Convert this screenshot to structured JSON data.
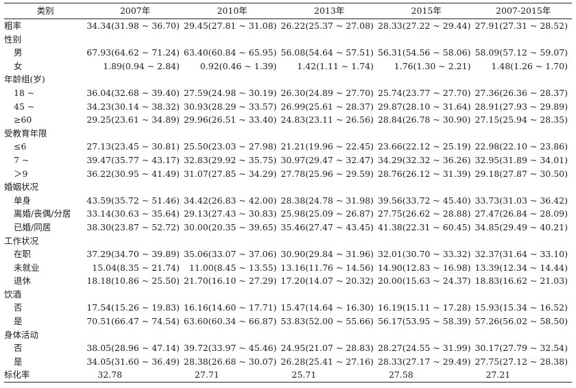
{
  "header": [
    "类别",
    "2007年",
    "2010年",
    "2013年",
    "2015年",
    "2007-2015年"
  ],
  "rows": [
    {
      "label": "粗率",
      "values": [
        "34.34(31.98 ~ 36.70)",
        "29.45(27.81 ~ 31.08)",
        "26.22(25.37 ~ 27.08)",
        "28.33(27.22 ~ 29.44)",
        "27.91(27.31 ~ 28.52)"
      ]
    },
    {
      "label": "性别",
      "values": [
        "",
        "",
        "",
        "",
        ""
      ]
    },
    {
      "label": "男",
      "sub": true,
      "values": [
        "67.93(64.62 ~ 71.24)",
        "63.40(60.84 ~ 65.95)",
        "56.08(54.64 ~ 57.51)",
        "56.31(54.56 ~ 58.06)",
        "58.09(57.12 ~ 59.07)"
      ]
    },
    {
      "label": "女",
      "sub": true,
      "values": [
        "1.89(0.94 ~ 2.84)",
        "0.92(0.46 ~ 1.39)",
        "1.42(1.11 ~ 1.74)",
        "1.76(1.30 ~ 2.21)",
        "1.48(1.26 ~ 1.70)"
      ]
    },
    {
      "label": "年龄组(岁)",
      "values": [
        "",
        "",
        "",
        "",
        ""
      ]
    },
    {
      "label": "18 ~",
      "sub": true,
      "values": [
        "36.04(32.68 ~ 39.40)",
        "27.59(24.98 ~ 30.19)",
        "26.30(24.89 ~ 27.70)",
        "25.74(23.77 ~ 27.70)",
        "27.36(26.36 ~ 28.37)"
      ]
    },
    {
      "label": "45 ~",
      "sub": true,
      "values": [
        "34.23(30.14 ~ 38.32)",
        "30.93(28.29 ~ 33.57)",
        "26.99(25.61 ~ 28.37)",
        "29.87(28.10 ~ 31.64)",
        "28.91(27.93 ~ 29.89)"
      ]
    },
    {
      "label": "≥60",
      "sub": true,
      "values": [
        "29.25(23.61 ~ 34.89)",
        "29.96(26.51 ~ 33.40)",
        "24.83(23.11 ~ 26.56)",
        "28.84(26.78 ~ 30.90)",
        "27.15(25.94 ~ 28.35)"
      ]
    },
    {
      "label": "受教育年限",
      "values": [
        "",
        "",
        "",
        "",
        ""
      ]
    },
    {
      "label": "≤6",
      "sub": true,
      "values": [
        "27.13(23.45 ~ 30.81)",
        "25.50(23.03 ~ 27.98)",
        "21.21(19.96 ~ 22.45)",
        "23.66(22.12 ~ 25.19)",
        "22.98(22.10 ~ 23.86)"
      ]
    },
    {
      "label": "7 ~",
      "sub": true,
      "values": [
        "39.47(35.77 ~ 43.17)",
        "32.83(29.92 ~ 35.75)",
        "30.97(29.47 ~ 32.47)",
        "34.29(32.32 ~ 36.26)",
        "32.95(31.89 ~ 34.01)"
      ]
    },
    {
      "label": "＞9",
      "sub": true,
      "values": [
        "36.22(30.95 ~ 41.49)",
        "31.07(27.85 ~ 34.29)",
        "27.78(25.96 ~ 29.59)",
        "28.76(26.12 ~ 31.39)",
        "29.18(27.87 ~ 30.50)"
      ]
    },
    {
      "label": "婚姻状况",
      "values": [
        "",
        "",
        "",
        "",
        ""
      ]
    },
    {
      "label": "单身",
      "sub": true,
      "values": [
        "43.59(35.72 ~ 51.46)",
        "34.42(26.83 ~ 42.00)",
        "28.38(24.78 ~ 31.98)",
        "39.56(33.72 ~ 45.40)",
        "33.73(31.03 ~ 36.42)"
      ]
    },
    {
      "label": "离婚/丧偶/分居",
      "sub": true,
      "values": [
        "33.14(30.63 ~ 35.64)",
        "29.13(27.43 ~ 30.83)",
        "25.98(25.09 ~ 26.87)",
        "27.75(26.62 ~ 28.88)",
        "27.47(26.84 ~ 28.09)"
      ]
    },
    {
      "label": "已婚/同居",
      "sub": true,
      "values": [
        "38.30(23.87 ~ 52.72)",
        "30.00(20.35 ~ 39.65)",
        "35.46(27.47 ~ 43.45)",
        "41.38(22.31 ~ 60.45)",
        "34.85(29.49 ~ 40.21)"
      ]
    },
    {
      "label": "工作状况",
      "values": [
        "",
        "",
        "",
        "",
        ""
      ]
    },
    {
      "label": "在职",
      "sub": true,
      "values": [
        "37.29(34.70 ~ 39.89)",
        "35.06(33.07 ~ 37.06)",
        "30.90(29.84 ~ 31.96)",
        "32.01(30.70 ~ 33.32)",
        "32.37(31.64 ~ 33.10)"
      ]
    },
    {
      "label": "未就业",
      "sub": true,
      "values": [
        "15.04(8.35 ~ 21.74)",
        "11.00(8.45 ~ 13.55)",
        "13.16(11.76 ~ 14.56)",
        "14.90(12.83 ~ 16.98)",
        "13.39(12.34 ~ 14.44)"
      ]
    },
    {
      "label": "退休",
      "sub": true,
      "values": [
        "18.18(10.86 ~ 25.50)",
        "21.70(16.10 ~ 27.29)",
        "17.20(14.07 ~ 20.32)",
        "20.00(15.63 ~ 24.37)",
        "18.83(16.62 ~ 21.03)"
      ]
    },
    {
      "label": "饮酒",
      "values": [
        "",
        "",
        "",
        "",
        ""
      ]
    },
    {
      "label": "否",
      "sub": true,
      "values": [
        "17.54(15.26 ~ 19.83)",
        "16.16(14.60 ~ 17.71)",
        "15.47(14.64 ~ 16.30)",
        "16.19(15.11 ~ 17.28)",
        "15.93(15.34 ~ 16.52)"
      ]
    },
    {
      "label": "是",
      "sub": true,
      "values": [
        "70.51(66.47 ~ 74.54)",
        "63.60(60.34 ~ 66.87)",
        "53.83(52.00 ~ 55.66)",
        "56.17(53.95 ~ 58.39)",
        "57.26(56.02 ~ 58.50)"
      ]
    },
    {
      "label": "身体活动",
      "values": [
        "",
        "",
        "",
        "",
        ""
      ]
    },
    {
      "label": "否",
      "sub": true,
      "values": [
        "38.05(28.96 ~ 47.14)",
        "39.72(33.97 ~ 45.46)",
        "24.95(21.07 ~ 28.83)",
        "28.27(24.55 ~ 31.99)",
        "30.17(27.79 ~ 32.54)"
      ]
    },
    {
      "label": "是",
      "sub": true,
      "values": [
        "34.05(31.60 ~ 36.49)",
        "28.38(26.68 ~ 30.07)",
        "26.28(25.41 ~ 27.16)",
        "28.33(27.17 ~ 29.49)",
        "27.75(27.12 ~ 28.38)"
      ]
    },
    {
      "label": "标化率",
      "left": true,
      "values": [
        "32.78",
        "27.71",
        "25.71",
        "27.58",
        "27.21"
      ]
    }
  ]
}
